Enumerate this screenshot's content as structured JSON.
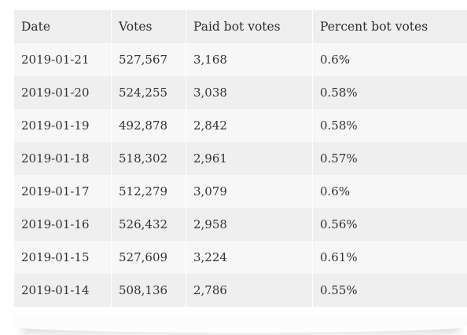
{
  "table": {
    "headers": {
      "date": "Date",
      "votes": "Votes",
      "paid": "Paid bot votes",
      "percent": "Percent bot votes"
    },
    "rows": [
      {
        "date": "2019-01-21",
        "votes": "527,567",
        "paid": "3,168",
        "percent": "0.6%"
      },
      {
        "date": "2019-01-20",
        "votes": "524,255",
        "paid": "3,038",
        "percent": "0.58%"
      },
      {
        "date": "2019-01-19",
        "votes": "492,878",
        "paid": "2,842",
        "percent": "0.58%"
      },
      {
        "date": "2019-01-18",
        "votes": "518,302",
        "paid": "2,961",
        "percent": "0.57%"
      },
      {
        "date": "2019-01-17",
        "votes": "512,279",
        "paid": "3,079",
        "percent": "0.6%"
      },
      {
        "date": "2019-01-16",
        "votes": "526,432",
        "paid": "2,958",
        "percent": "0.56%"
      },
      {
        "date": "2019-01-15",
        "votes": "527,609",
        "paid": "3,224",
        "percent": "0.61%"
      },
      {
        "date": "2019-01-14",
        "votes": "508,136",
        "paid": "2,786",
        "percent": "0.55%"
      }
    ]
  }
}
